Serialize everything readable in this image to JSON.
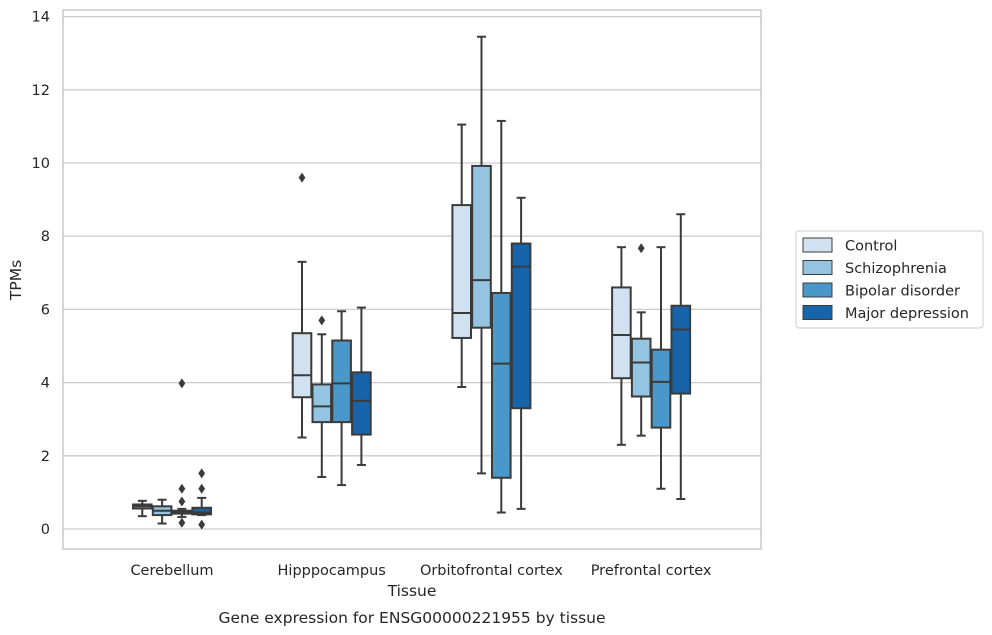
{
  "chart_data": {
    "type": "box",
    "xlabel": "Tissue",
    "ylabel": "TPMs",
    "caption": "Gene expression for ENSG00000221955 by tissue",
    "ylim": [
      -0.5,
      14.2
    ],
    "yticks": [
      "0",
      "2",
      "4",
      "6",
      "8",
      "10",
      "12",
      "14"
    ],
    "grid": "horizontal",
    "legend_position": "right",
    "categories": [
      "Cerebellum",
      "Hipppocampus",
      "Orbitofrontal cortex",
      "Prefrontal cortex"
    ],
    "series": [
      {
        "name": "Control",
        "color": "#d0e1f2",
        "boxes": [
          {
            "whislo": 0.35,
            "q1": 0.56,
            "med": 0.62,
            "q3": 0.67,
            "whishi": 0.77,
            "fliers": []
          },
          {
            "whislo": 2.5,
            "q1": 3.6,
            "med": 4.2,
            "q3": 5.35,
            "whishi": 7.3,
            "fliers": [
              9.6
            ]
          },
          {
            "whislo": 3.88,
            "q1": 5.22,
            "med": 5.9,
            "q3": 8.85,
            "whishi": 11.05,
            "fliers": []
          },
          {
            "whislo": 2.3,
            "q1": 4.12,
            "med": 5.3,
            "q3": 6.6,
            "whishi": 7.7,
            "fliers": []
          }
        ]
      },
      {
        "name": "Schizophrenia",
        "color": "#94c4df",
        "boxes": [
          {
            "whislo": 0.15,
            "q1": 0.38,
            "med": 0.5,
            "q3": 0.62,
            "whishi": 0.8,
            "fliers": []
          },
          {
            "whislo": 1.42,
            "q1": 2.92,
            "med": 3.35,
            "q3": 3.95,
            "whishi": 5.32,
            "fliers": [
              5.7
            ]
          },
          {
            "whislo": 1.52,
            "q1": 5.5,
            "med": 6.8,
            "q3": 9.92,
            "whishi": 13.45,
            "fliers": []
          },
          {
            "whislo": 2.55,
            "q1": 3.62,
            "med": 4.55,
            "q3": 5.2,
            "whishi": 5.92,
            "fliers": [
              7.67
            ]
          }
        ]
      },
      {
        "name": "Bipolar disorder",
        "color": "#4a98c9",
        "boxes": [
          {
            "whislo": 0.33,
            "q1": 0.42,
            "med": 0.46,
            "q3": 0.5,
            "whishi": 0.55,
            "fliers": [
              3.98,
              1.1,
              0.75,
              0.17
            ]
          },
          {
            "whislo": 1.2,
            "q1": 2.92,
            "med": 3.98,
            "q3": 5.15,
            "whishi": 5.95,
            "fliers": []
          },
          {
            "whislo": 0.45,
            "q1": 1.4,
            "med": 4.52,
            "q3": 6.45,
            "whishi": 11.15,
            "fliers": []
          },
          {
            "whislo": 1.1,
            "q1": 2.77,
            "med": 4.02,
            "q3": 4.9,
            "whishi": 7.7,
            "fliers": []
          }
        ]
      },
      {
        "name": "Major depression",
        "color": "#1764ab",
        "boxes": [
          {
            "whislo": 0.38,
            "q1": 0.4,
            "med": 0.45,
            "q3": 0.58,
            "whishi": 0.85,
            "fliers": [
              1.52,
              1.1,
              0.12
            ]
          },
          {
            "whislo": 1.75,
            "q1": 2.58,
            "med": 3.5,
            "q3": 4.28,
            "whishi": 6.05,
            "fliers": []
          },
          {
            "whislo": 0.55,
            "q1": 3.3,
            "med": 7.17,
            "q3": 7.8,
            "whishi": 9.05,
            "fliers": []
          },
          {
            "whislo": 0.82,
            "q1": 3.7,
            "med": 5.45,
            "q3": 6.1,
            "whishi": 8.6,
            "fliers": []
          }
        ]
      }
    ]
  }
}
